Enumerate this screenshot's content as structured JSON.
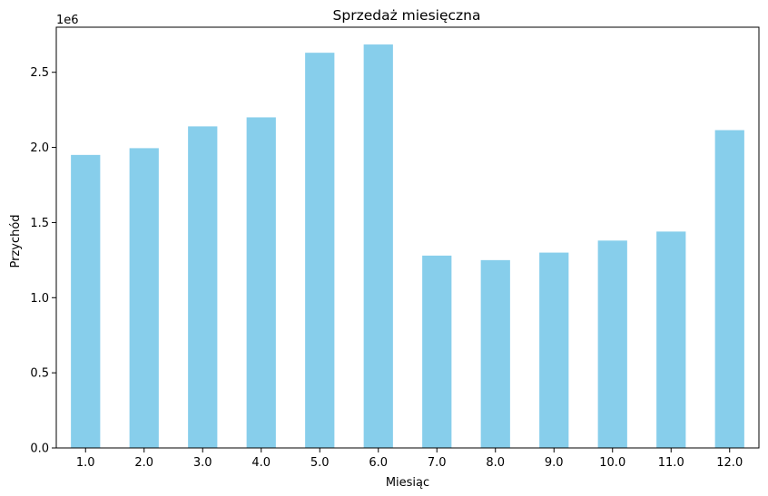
{
  "chart_data": {
    "type": "bar",
    "title": "Sprzedaż miesięczna",
    "xlabel": "Miesiąc",
    "ylabel": "Przychód",
    "offset_label": "1e6",
    "categories": [
      "1.0",
      "2.0",
      "3.0",
      "4.0",
      "5.0",
      "6.0",
      "7.0",
      "8.0",
      "9.0",
      "10.0",
      "11.0",
      "12.0"
    ],
    "values": [
      1950000,
      1995000,
      2140000,
      2200000,
      2630000,
      2685000,
      1280000,
      1250000,
      1300000,
      1380000,
      1440000,
      2115000
    ],
    "ylim": [
      0,
      2800000
    ],
    "yticks": [
      0,
      500000,
      1000000,
      1500000,
      2000000,
      2500000
    ],
    "ytick_labels": [
      "0.0",
      "0.5",
      "1.0",
      "1.5",
      "2.0",
      "2.5"
    ],
    "bar_color": "#87ceeb",
    "grid": false,
    "legend": "none"
  }
}
